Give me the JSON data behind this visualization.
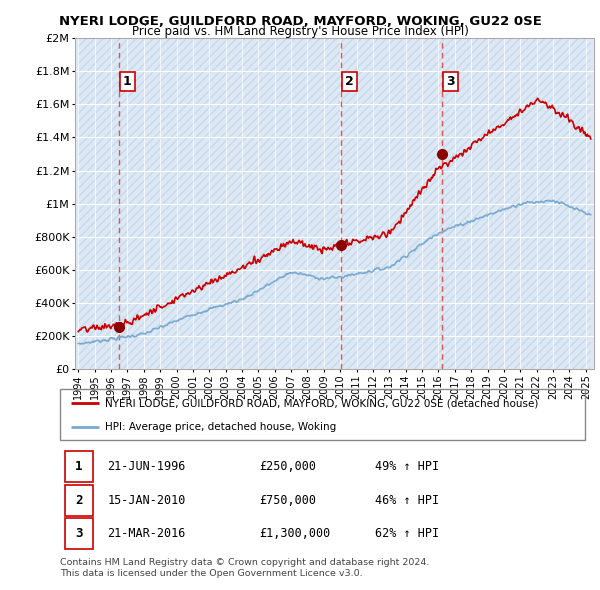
{
  "title": "NYERI LODGE, GUILDFORD ROAD, MAYFORD, WOKING, GU22 0SE",
  "subtitle": "Price paid vs. HM Land Registry's House Price Index (HPI)",
  "background_color": "#ffffff",
  "plot_bg_color": "#dce9f5",
  "hatch_color": "#c8d8ec",
  "grid_color": "#ffffff",
  "red_line_color": "#cc0000",
  "blue_line_color": "#7aaad0",
  "sale_marker_color": "#8b0000",
  "vline_color": "#e05555",
  "sale_label_border": "#cc0000",
  "sales": [
    {
      "date_num": 1996.47,
      "price": 250000,
      "label": "1"
    },
    {
      "date_num": 2010.04,
      "price": 750000,
      "label": "2"
    },
    {
      "date_num": 2016.22,
      "price": 1300000,
      "label": "3"
    }
  ],
  "legend_entries": [
    "NYERI LODGE, GUILDFORD ROAD, MAYFORD, WOKING, GU22 0SE (detached house)",
    "HPI: Average price, detached house, Woking"
  ],
  "table_data": [
    {
      "num": "1",
      "date": "21-JUN-1996",
      "price": "£250,000",
      "hpi": "49% ↑ HPI"
    },
    {
      "num": "2",
      "date": "15-JAN-2010",
      "price": "£750,000",
      "hpi": "46% ↑ HPI"
    },
    {
      "num": "3",
      "date": "21-MAR-2016",
      "price": "£1,300,000",
      "hpi": "62% ↑ HPI"
    }
  ],
  "footer": "Contains HM Land Registry data © Crown copyright and database right 2024.\nThis data is licensed under the Open Government Licence v3.0.",
  "ylim": [
    0,
    2000000
  ],
  "xlim": [
    1993.8,
    2025.5
  ],
  "yticks": [
    0,
    200000,
    400000,
    600000,
    800000,
    1000000,
    1200000,
    1400000,
    1600000,
    1800000,
    2000000
  ],
  "ytick_labels": [
    "£0",
    "£200K",
    "£400K",
    "£600K",
    "£800K",
    "£1M",
    "£1.2M",
    "£1.4M",
    "£1.6M",
    "£1.8M",
    "£2M"
  ],
  "xticks": [
    1994,
    1995,
    1996,
    1997,
    1998,
    1999,
    2000,
    2001,
    2002,
    2003,
    2004,
    2005,
    2006,
    2007,
    2008,
    2009,
    2010,
    2011,
    2012,
    2013,
    2014,
    2015,
    2016,
    2017,
    2018,
    2019,
    2020,
    2021,
    2022,
    2023,
    2024,
    2025
  ]
}
